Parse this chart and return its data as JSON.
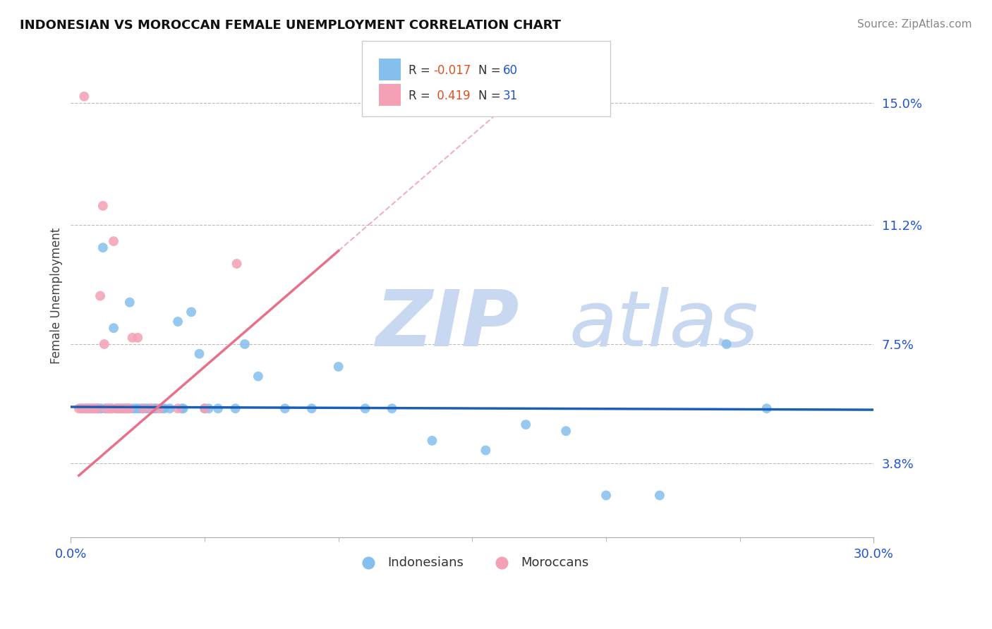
{
  "title": "INDONESIAN VS MOROCCAN FEMALE UNEMPLOYMENT CORRELATION CHART",
  "source": "Source: ZipAtlas.com",
  "ylabel": "Female Unemployment",
  "xmin": 0.0,
  "xmax": 30.0,
  "yticks": [
    3.8,
    7.5,
    11.2,
    15.0
  ],
  "r_indonesian": -0.017,
  "n_indonesian": 60,
  "r_moroccan": 0.419,
  "n_moroccan": 31,
  "color_indonesian": "#85bfed",
  "color_moroccan": "#f4a0b5",
  "trendline_indonesian": "#1a5fb4",
  "trendline_moroccan": "#e8708a",
  "watermark": "ZIPatlas",
  "watermark_color": "#c8d8f0",
  "indo_trend_slope": -0.003,
  "indo_trend_intercept": 5.55,
  "mor_trend_slope": 0.72,
  "mor_trend_intercept": 3.2,
  "indonesian_x": [
    0.4,
    0.5,
    0.6,
    0.7,
    0.8,
    0.9,
    1.0,
    1.0,
    1.1,
    1.2,
    1.3,
    1.4,
    1.5,
    1.6,
    1.7,
    1.8,
    1.9,
    2.0,
    2.1,
    2.2,
    2.3,
    2.4,
    2.5,
    2.6,
    2.7,
    2.8,
    2.9,
    3.0,
    3.1,
    3.2,
    3.4,
    3.5,
    3.7,
    4.0,
    4.2,
    4.5,
    4.8,
    5.0,
    5.5,
    6.5,
    7.0,
    8.0,
    9.0,
    10.0,
    11.0,
    12.0,
    13.5,
    15.5,
    17.0,
    18.5,
    20.0,
    22.0,
    24.5,
    26.0,
    1.15,
    2.15,
    3.15,
    4.15,
    5.15,
    6.15
  ],
  "indonesian_y": [
    5.5,
    5.5,
    5.5,
    5.5,
    5.5,
    5.5,
    5.5,
    5.5,
    5.5,
    10.5,
    5.5,
    5.5,
    5.5,
    8.0,
    5.5,
    5.5,
    5.5,
    5.5,
    5.5,
    8.8,
    5.5,
    5.5,
    5.5,
    5.5,
    5.5,
    5.5,
    5.5,
    5.5,
    5.5,
    5.5,
    5.5,
    5.5,
    5.5,
    8.2,
    5.5,
    8.5,
    7.2,
    5.5,
    5.5,
    7.5,
    6.5,
    5.5,
    5.5,
    6.8,
    5.5,
    5.5,
    4.5,
    4.2,
    5.0,
    4.8,
    2.8,
    2.8,
    7.5,
    5.5,
    5.5,
    5.5,
    5.5,
    5.5,
    5.5,
    5.5
  ],
  "moroccan_x": [
    0.3,
    0.4,
    0.5,
    0.6,
    0.7,
    0.8,
    0.9,
    1.0,
    1.1,
    1.2,
    1.3,
    1.4,
    1.5,
    1.6,
    1.7,
    1.8,
    1.9,
    2.0,
    2.1,
    2.2,
    2.3,
    2.5,
    2.7,
    3.0,
    3.3,
    4.0,
    5.0,
    6.2,
    1.25,
    1.55,
    0.55
  ],
  "moroccan_y": [
    5.5,
    5.5,
    15.2,
    5.5,
    5.5,
    5.5,
    5.5,
    5.5,
    9.0,
    11.8,
    5.5,
    5.5,
    5.5,
    10.7,
    5.5,
    5.5,
    5.5,
    5.5,
    5.5,
    5.5,
    7.7,
    7.7,
    5.5,
    5.5,
    5.5,
    5.5,
    5.5,
    10.0,
    7.5,
    5.5,
    5.5
  ]
}
